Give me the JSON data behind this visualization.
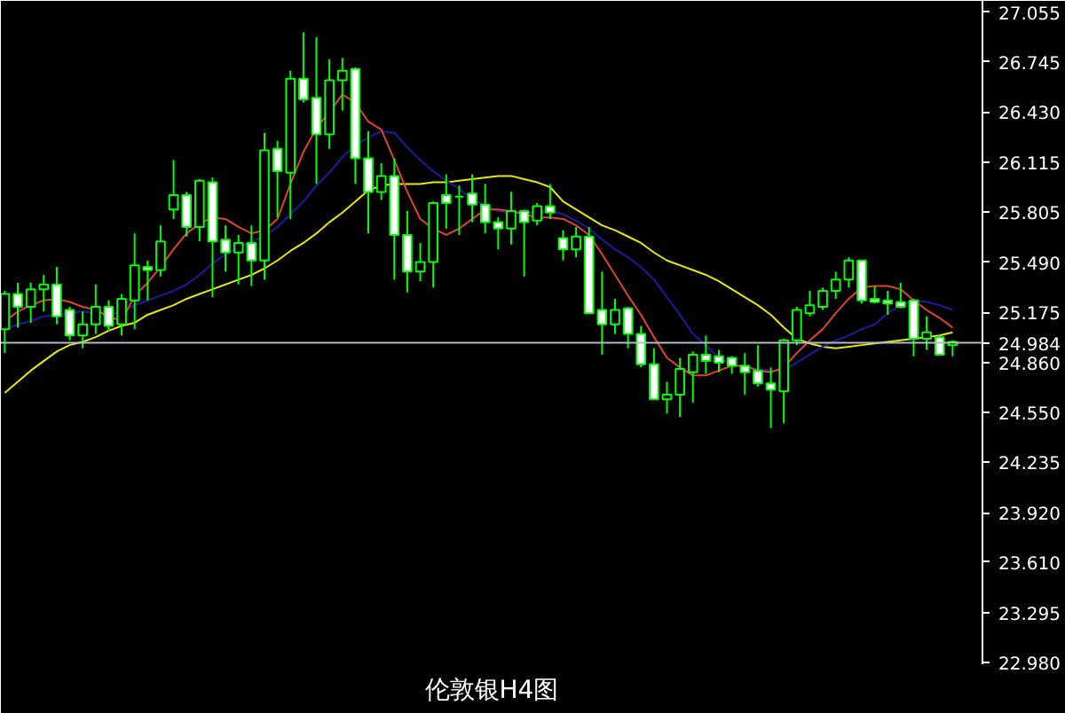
{
  "chart_data": {
    "type": "candlestick",
    "title": "伦敦银H4图",
    "categories": [
      null,
      null,
      null,
      null,
      null,
      null,
      null,
      null,
      null,
      null,
      null,
      null,
      null,
      null,
      null,
      null,
      null,
      null,
      null,
      null,
      null,
      null,
      null,
      null,
      null,
      null,
      null,
      null,
      null,
      null,
      null,
      null,
      null,
      null,
      null,
      null,
      null,
      null,
      null,
      null,
      null,
      null,
      null,
      null,
      null,
      null,
      null,
      null,
      null,
      null,
      null,
      null,
      null,
      null,
      null,
      null,
      null,
      null,
      null,
      null,
      null,
      null,
      null,
      null,
      null,
      null,
      null,
      null,
      null,
      null,
      null,
      null,
      null,
      null
    ],
    "series": [
      {
        "type": "line",
        "color": "#e8e800",
        "values": [
          24.67,
          24.74,
          24.81,
          24.87,
          24.93,
          24.97,
          24.99,
          25.02,
          25.06,
          25.09,
          25.11,
          25.16,
          25.19,
          25.22,
          25.26,
          25.29,
          25.32,
          25.35,
          25.38,
          25.41,
          25.45,
          25.5,
          25.56,
          25.61,
          25.67,
          25.74,
          25.8,
          25.87,
          25.94,
          25.97,
          25.98,
          25.98,
          25.98,
          25.99,
          25.99,
          26.0,
          26.01,
          26.02,
          26.03,
          26.03,
          26.01,
          25.99,
          25.96,
          25.87,
          25.82,
          25.77,
          25.72,
          25.69,
          25.65,
          25.61,
          25.55,
          25.5,
          25.47,
          25.44,
          25.41,
          25.37,
          25.32,
          25.27,
          25.22,
          25.16,
          25.08,
          25.01,
          24.98,
          24.96,
          24.95,
          24.96,
          24.97,
          24.98,
          24.99,
          25.0,
          25.01,
          25.02,
          25.03,
          25.05
        ]
      },
      {
        "type": "line",
        "color": "#1c1c9c",
        "values": [
          25.07,
          25.1,
          25.12,
          25.15,
          25.16,
          25.17,
          25.18,
          25.17,
          25.16,
          25.18,
          25.22,
          25.25,
          25.28,
          25.31,
          25.35,
          25.41,
          25.48,
          25.54,
          25.58,
          25.62,
          25.65,
          25.71,
          25.79,
          25.87,
          25.97,
          26.05,
          26.15,
          26.22,
          26.27,
          26.31,
          26.3,
          26.21,
          26.13,
          26.06,
          26.0,
          25.95,
          25.88,
          25.85,
          25.81,
          25.8,
          25.8,
          25.8,
          25.81,
          25.79,
          25.75,
          25.7,
          25.63,
          25.57,
          25.52,
          25.46,
          25.38,
          25.27,
          25.16,
          25.04,
          24.97,
          24.89,
          24.85,
          24.83,
          24.82,
          24.81,
          24.81,
          24.86,
          24.91,
          24.96,
          25.0,
          25.03,
          25.07,
          25.1,
          25.17,
          25.22,
          25.25,
          25.24,
          25.22,
          25.19
        ]
      },
      {
        "type": "line",
        "color": "#e0442c",
        "values": [
          25.12,
          25.18,
          25.22,
          25.25,
          25.26,
          25.24,
          25.21,
          25.19,
          25.15,
          25.12,
          25.28,
          25.36,
          25.46,
          25.57,
          25.67,
          25.73,
          25.77,
          25.76,
          25.71,
          25.67,
          25.69,
          25.76,
          25.98,
          26.18,
          26.33,
          26.43,
          26.54,
          26.49,
          26.37,
          26.32,
          26.13,
          25.93,
          25.76,
          25.7,
          25.66,
          25.7,
          25.76,
          25.82,
          25.82,
          25.81,
          25.79,
          25.77,
          25.77,
          25.76,
          25.72,
          25.66,
          25.54,
          25.41,
          25.28,
          25.16,
          25.02,
          24.89,
          24.83,
          24.78,
          24.78,
          24.81,
          24.84,
          24.84,
          24.81,
          24.8,
          24.83,
          24.92,
          25.0,
          25.07,
          25.17,
          25.26,
          25.33,
          25.34,
          25.34,
          25.32,
          25.25,
          25.19,
          25.14,
          25.08
        ]
      },
      {
        "color": "#00ff00",
        "ohlc": [
          [
            25.07,
            25.31,
            24.92,
            25.29
          ],
          [
            25.29,
            25.36,
            25.08,
            25.21
          ],
          [
            25.21,
            25.36,
            25.11,
            25.32
          ],
          [
            25.32,
            25.41,
            25.18,
            25.35
          ],
          [
            25.35,
            25.46,
            25.1,
            25.15
          ],
          [
            25.19,
            25.21,
            25.0,
            25.03
          ],
          [
            25.03,
            25.18,
            24.95,
            25.1
          ],
          [
            25.1,
            25.35,
            25.04,
            25.21
          ],
          [
            25.21,
            25.25,
            25.06,
            25.09
          ],
          [
            25.1,
            25.29,
            25.03,
            25.26
          ],
          [
            25.25,
            25.67,
            25.07,
            25.47
          ],
          [
            25.46,
            25.5,
            25.25,
            25.44
          ],
          [
            25.44,
            25.72,
            25.4,
            25.62
          ],
          [
            25.82,
            26.13,
            25.76,
            25.91
          ],
          [
            25.91,
            25.93,
            25.65,
            25.71
          ],
          [
            25.71,
            26.01,
            25.62,
            26.0
          ],
          [
            25.99,
            26.02,
            25.27,
            25.62
          ],
          [
            25.63,
            25.72,
            25.43,
            25.55
          ],
          [
            25.55,
            25.66,
            25.35,
            25.61
          ],
          [
            25.61,
            25.72,
            25.34,
            25.5
          ],
          [
            25.5,
            26.3,
            25.38,
            26.19
          ],
          [
            26.2,
            26.25,
            25.77,
            26.06
          ],
          [
            26.05,
            26.69,
            25.76,
            26.64
          ],
          [
            26.64,
            26.93,
            26.49,
            26.51
          ],
          [
            26.52,
            26.9,
            25.98,
            26.29
          ],
          [
            26.29,
            26.76,
            26.2,
            26.63
          ],
          [
            26.63,
            26.77,
            26.44,
            26.69
          ],
          [
            26.7,
            26.71,
            25.98,
            26.14
          ],
          [
            26.14,
            26.31,
            25.67,
            25.93
          ],
          [
            25.93,
            26.11,
            25.88,
            26.03
          ],
          [
            26.03,
            26.14,
            25.38,
            25.66
          ],
          [
            25.66,
            25.81,
            25.3,
            25.43
          ],
          [
            25.43,
            25.61,
            25.37,
            25.49
          ],
          [
            25.49,
            25.87,
            25.33,
            25.86
          ],
          [
            25.91,
            26.04,
            25.7,
            25.86
          ],
          [
            25.9,
            25.97,
            25.66,
            25.9
          ],
          [
            25.92,
            26.04,
            25.74,
            25.85
          ],
          [
            25.85,
            25.98,
            25.67,
            25.74
          ],
          [
            25.74,
            25.77,
            25.57,
            25.7
          ],
          [
            25.7,
            25.93,
            25.6,
            25.81
          ],
          [
            25.81,
            25.82,
            25.4,
            25.74
          ],
          [
            25.75,
            25.86,
            25.72,
            25.84
          ],
          [
            25.84,
            25.98,
            25.76,
            25.8
          ],
          [
            25.64,
            25.69,
            25.5,
            25.57
          ],
          [
            25.57,
            25.71,
            25.52,
            25.65
          ],
          [
            25.65,
            25.71,
            25.17,
            25.17
          ],
          [
            25.19,
            25.43,
            24.91,
            25.1
          ],
          [
            25.1,
            25.26,
            25.04,
            25.19
          ],
          [
            25.2,
            25.21,
            24.95,
            25.04
          ],
          [
            25.04,
            25.09,
            24.83,
            24.85
          ],
          [
            24.85,
            24.95,
            24.63,
            24.63
          ],
          [
            24.63,
            24.74,
            24.54,
            24.66
          ],
          [
            24.66,
            24.89,
            24.52,
            24.82
          ],
          [
            24.8,
            24.93,
            24.61,
            24.91
          ],
          [
            24.91,
            25.03,
            24.79,
            24.87
          ],
          [
            24.9,
            24.94,
            24.8,
            24.86
          ],
          [
            24.89,
            24.9,
            24.79,
            24.84
          ],
          [
            24.84,
            24.92,
            24.66,
            24.8
          ],
          [
            24.81,
            24.97,
            24.71,
            24.73
          ],
          [
            24.73,
            24.83,
            24.45,
            24.69
          ],
          [
            24.68,
            25.01,
            24.48,
            25.0
          ],
          [
            25.0,
            25.21,
            24.97,
            25.19
          ],
          [
            25.17,
            25.31,
            25.15,
            25.22
          ],
          [
            25.21,
            25.33,
            25.19,
            25.31
          ],
          [
            25.31,
            25.43,
            25.26,
            25.38
          ],
          [
            25.38,
            25.52,
            25.33,
            25.5
          ],
          [
            25.5,
            25.5,
            25.23,
            25.25
          ],
          [
            25.26,
            25.34,
            25.23,
            25.24
          ],
          [
            25.25,
            25.31,
            25.16,
            25.23
          ],
          [
            25.24,
            25.36,
            25.2,
            25.21
          ],
          [
            25.25,
            25.26,
            24.9,
            25.01
          ],
          [
            25.01,
            25.15,
            24.94,
            25.05
          ],
          [
            25.02,
            25.03,
            24.91,
            24.91
          ],
          [
            24.97,
            25.0,
            24.9,
            24.99
          ]
        ]
      }
    ],
    "ylim": [
      22.97,
      27.127
    ],
    "yticks": [
      27.055,
      26.745,
      {
        "value": 26.43,
        "label": "26.430"
      },
      26.115,
      25.805,
      {
        "value": 25.49,
        "label": "25.490"
      },
      25.175,
      {
        "value": 24.86,
        "label": "24.860"
      },
      {
        "value": 24.55,
        "label": "24.550"
      },
      24.235,
      {
        "value": 23.92,
        "label": "23.920"
      },
      {
        "value": 23.61,
        "label": "23.610"
      },
      23.295,
      {
        "value": 22.98,
        "label": "22.980"
      }
    ],
    "ref_lines": [
      {
        "axis": "y",
        "value": 24.984,
        "label": "24.984",
        "color": "#b4b9c3"
      }
    ],
    "tick_labels": "y",
    "marker": "none"
  }
}
